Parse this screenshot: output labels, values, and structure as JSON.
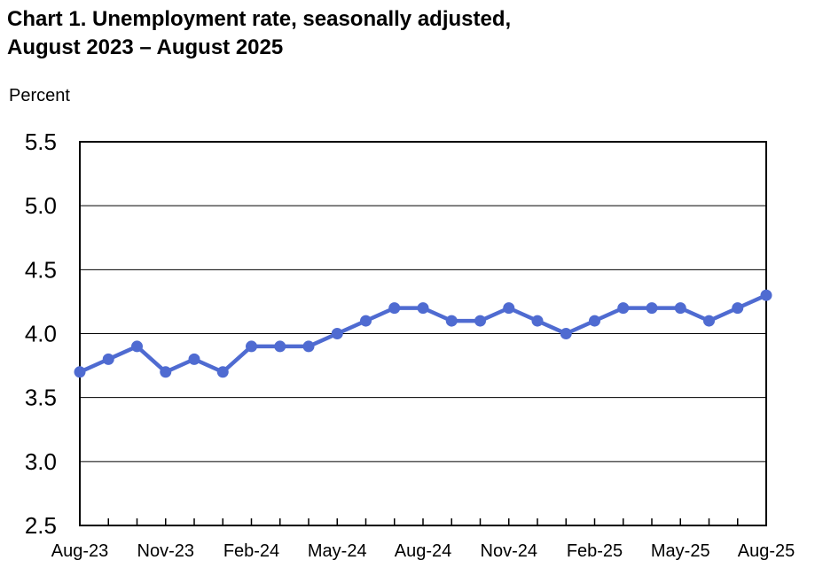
{
  "chart_data": {
    "type": "line",
    "title": "Chart 1. Unemployment rate, seasonally adjusted,",
    "subtitle": "August 2023 – August 2025",
    "ylabel": "Percent",
    "xlabel": "",
    "ylim": [
      2.5,
      5.5
    ],
    "yticks": [
      "2.5",
      "3.0",
      "3.5",
      "4.0",
      "4.5",
      "5.0",
      "5.5"
    ],
    "x": [
      "Aug-23",
      "Sep-23",
      "Oct-23",
      "Nov-23",
      "Dec-23",
      "Jan-24",
      "Feb-24",
      "Mar-24",
      "Apr-24",
      "May-24",
      "Jun-24",
      "Jul-24",
      "Aug-24",
      "Sep-24",
      "Oct-24",
      "Nov-24",
      "Dec-24",
      "Jan-25",
      "Feb-25",
      "Mar-25",
      "Apr-25",
      "May-25",
      "Jun-25",
      "Jul-25",
      "Aug-25"
    ],
    "xtick_labels": [
      "Aug-23",
      "Nov-23",
      "Feb-24",
      "May-24",
      "Aug-24",
      "Nov-24",
      "Feb-25",
      "May-25",
      "Aug-25"
    ],
    "series": [
      {
        "values": [
          3.7,
          3.8,
          3.9,
          3.7,
          3.8,
          3.7,
          3.9,
          3.9,
          3.9,
          4.0,
          4.1,
          4.2,
          4.2,
          4.1,
          4.1,
          4.2,
          4.1,
          4.0,
          4.1,
          4.2,
          4.2,
          4.2,
          4.1,
          4.2,
          4.3
        ],
        "color": "#4F6BD1"
      }
    ],
    "grid": true,
    "legend": "none"
  }
}
